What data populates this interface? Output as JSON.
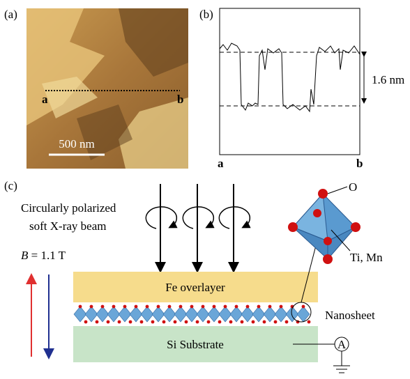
{
  "panels": {
    "a": {
      "label": "(a)",
      "start_marker": "a",
      "end_marker": "b",
      "scale_bar": "500 nm"
    },
    "b": {
      "label": "(b)",
      "step_height": "1.6 nm",
      "x_start": "a",
      "x_end": "b"
    },
    "c": {
      "label": "(c)",
      "beam_label": [
        "Circularly polarized",
        "soft X-ray beam"
      ],
      "field_symbol": "B",
      "field_value": "= 1.1 T",
      "atom_label_o": "O",
      "atom_label_metal": "Ti, Mn",
      "fe_layer": "Fe overlayer",
      "nanosheet": "Nanosheet",
      "substrate": "Si Substrate",
      "ammeter": "A"
    }
  }
}
